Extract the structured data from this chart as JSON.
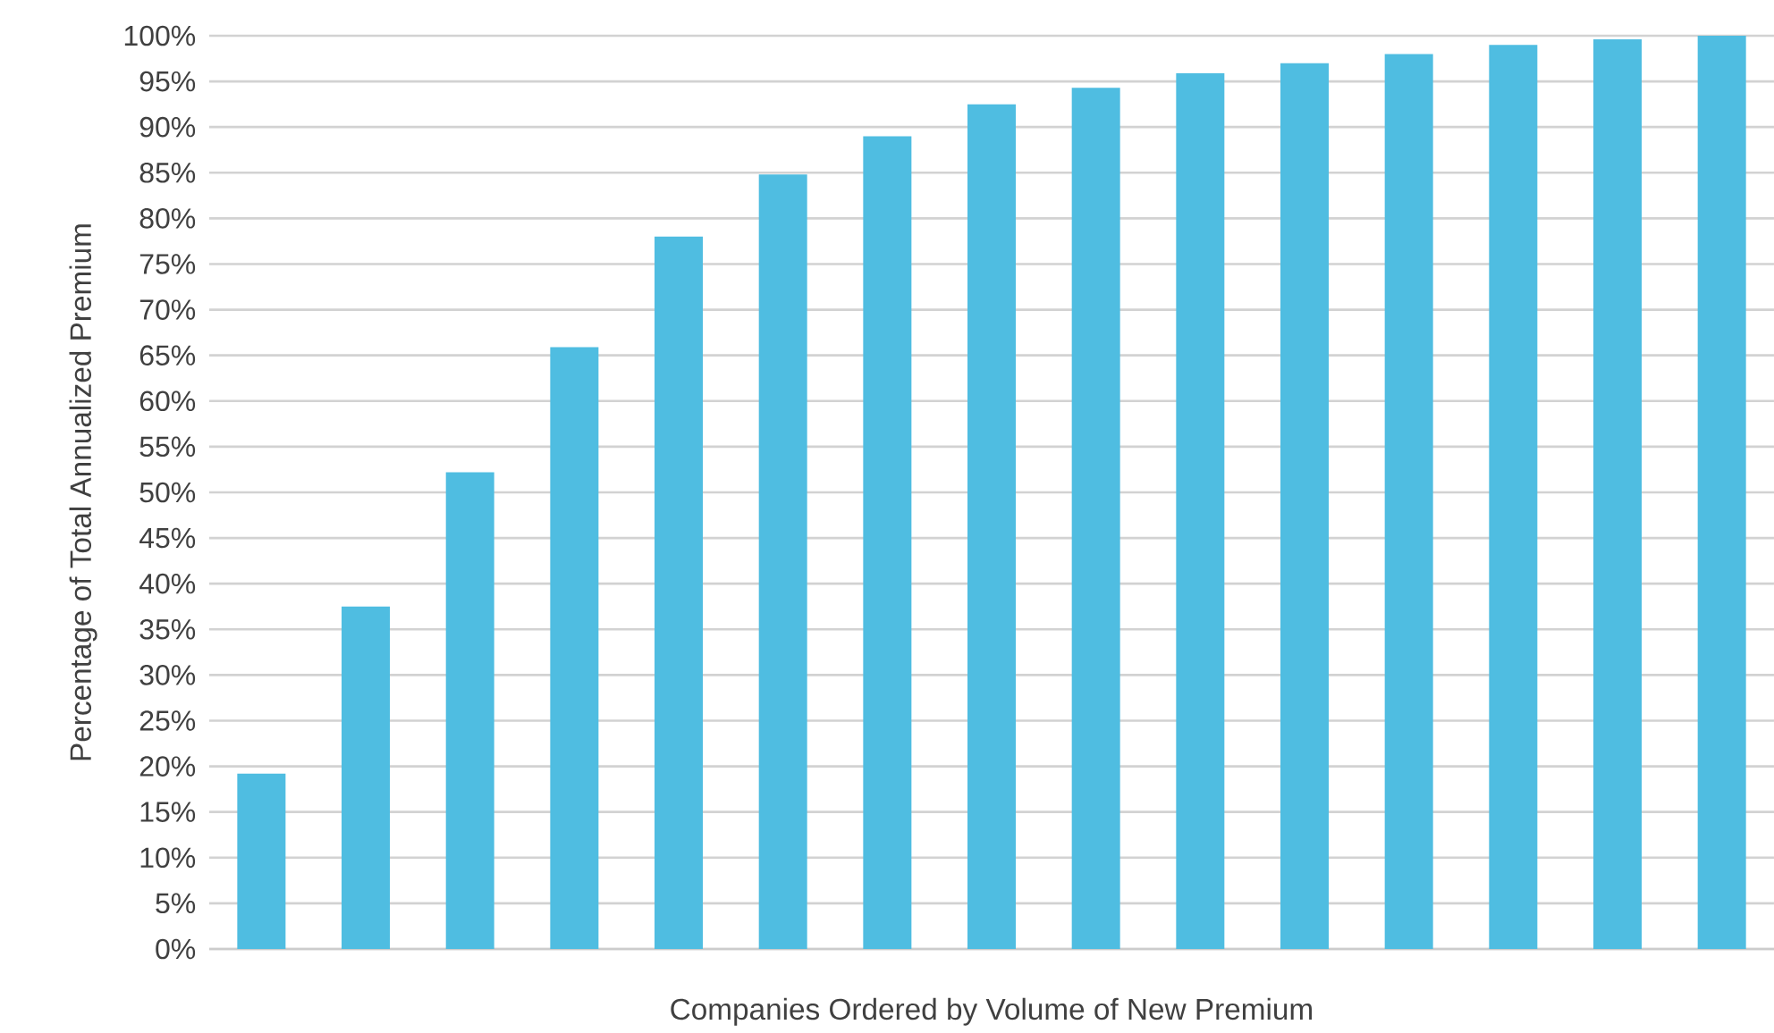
{
  "chart_data": {
    "type": "bar",
    "xlabel": "Companies Ordered by Volume of New Premium",
    "ylabel": "Percentage of Total Annualized Premium",
    "categories": [
      null,
      null,
      null,
      null,
      null,
      null,
      null,
      null,
      null,
      null,
      null,
      null,
      null,
      null,
      null
    ],
    "values": [
      19.2,
      37.5,
      52.2,
      65.9,
      78,
      84.8,
      89,
      92.5,
      94.3,
      95.9,
      97,
      98,
      99,
      99.6,
      100
    ],
    "color": "#4fbde1",
    "ylim": [
      0,
      100
    ],
    "yticks": [
      {
        "value": 0,
        "label": "0%"
      },
      {
        "value": 5,
        "label": "5%"
      },
      {
        "value": 10,
        "label": "10%"
      },
      {
        "value": 15,
        "label": "15%"
      },
      {
        "value": 20,
        "label": "20%"
      },
      {
        "value": 25,
        "label": "25%"
      },
      {
        "value": 30,
        "label": "30%"
      },
      {
        "value": 35,
        "label": "35%"
      },
      {
        "value": 40,
        "label": "40%"
      },
      {
        "value": 45,
        "label": "45%"
      },
      {
        "value": 50,
        "label": "50%"
      },
      {
        "value": 55,
        "label": "55%"
      },
      {
        "value": 60,
        "label": "60%"
      },
      {
        "value": 65,
        "label": "65%"
      },
      {
        "value": 70,
        "label": "70%"
      },
      {
        "value": 75,
        "label": "75%"
      },
      {
        "value": 80,
        "label": "80%"
      },
      {
        "value": 85,
        "label": "85%"
      },
      {
        "value": 90,
        "label": "90%"
      },
      {
        "value": 95,
        "label": "95%"
      },
      {
        "value": 100,
        "label": "100%"
      }
    ],
    "grid": "y",
    "tick_labels": "y"
  }
}
